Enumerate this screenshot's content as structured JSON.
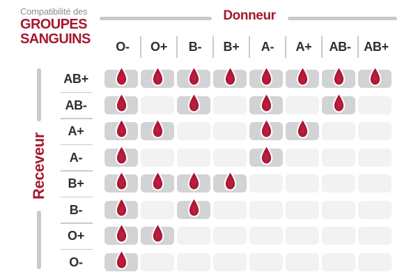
{
  "title": {
    "eyebrow": "Compatibilité des",
    "line1": "GROUPES",
    "line2": "SANGUINS"
  },
  "chart_data": {
    "type": "heatmap",
    "title": "Compatibilité des GROUPES SANGUINS",
    "xlabel": "Donneur",
    "ylabel": "Receveur",
    "x": [
      "O-",
      "O+",
      "B-",
      "B+",
      "A-",
      "A+",
      "AB-",
      "AB+"
    ],
    "y": [
      "AB+",
      "AB-",
      "A+",
      "A-",
      "B+",
      "B-",
      "O+",
      "O-"
    ],
    "values": [
      [
        1,
        1,
        1,
        1,
        1,
        1,
        1,
        1
      ],
      [
        1,
        0,
        1,
        0,
        1,
        0,
        1,
        0
      ],
      [
        1,
        1,
        0,
        0,
        1,
        1,
        0,
        0
      ],
      [
        1,
        0,
        0,
        0,
        1,
        0,
        0,
        0
      ],
      [
        1,
        1,
        1,
        1,
        0,
        0,
        0,
        0
      ],
      [
        1,
        0,
        1,
        0,
        0,
        0,
        0,
        0
      ],
      [
        1,
        1,
        0,
        0,
        0,
        0,
        0,
        0
      ],
      [
        1,
        0,
        0,
        0,
        0,
        0,
        0,
        0
      ]
    ],
    "marker": "blood-drop-icon",
    "marker_meaning": "compatible",
    "legend_position": "none",
    "grid": "off"
  },
  "colors": {
    "accent_red": "#A5182F",
    "drop_red": "#9D0E2C",
    "drop_red_light": "#BF2342",
    "filled_cell": "#D2D3D4",
    "empty_cell": "#F2F2F3",
    "rule_gray": "#C7C9CB",
    "label_dark": "#2D2D2D",
    "eyebrow_gray": "#8F8F8F"
  }
}
